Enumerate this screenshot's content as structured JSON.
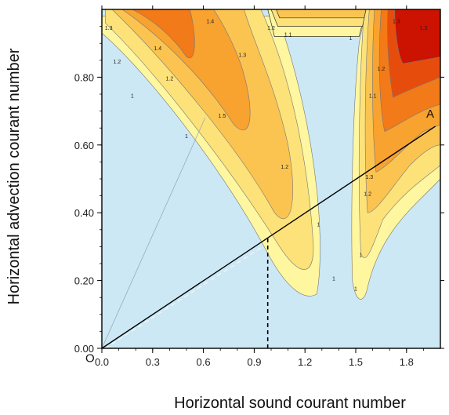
{
  "chart_data": {
    "type": "contour",
    "title": "",
    "xlabel": "Horizontal sound courant number",
    "ylabel": "Horizontal advection courant number",
    "xlim": [
      0.0,
      2.0
    ],
    "ylim": [
      0.0,
      1.0
    ],
    "x_ticks": [
      "0.0",
      "0.3",
      "0.6",
      "0.9",
      "1.2",
      "1.5",
      "1.8"
    ],
    "y_ticks": [
      "0.00",
      "0.20",
      "0.40",
      "0.60",
      "0.80"
    ],
    "x_tick_values": [
      0.0,
      0.3,
      0.6,
      0.9,
      1.2,
      1.5,
      1.8
    ],
    "y_tick_values": [
      0.0,
      0.2,
      0.4,
      0.6,
      0.8
    ],
    "stable_region_color": "#cce8f4",
    "fill_colors": [
      "#fff6a0",
      "#fde27a",
      "#fbc451",
      "#f8a230",
      "#f27a18",
      "#e64d0c",
      "#cc1200"
    ],
    "annotations": [
      {
        "text": "O",
        "x": -0.07,
        "y": -0.04
      },
      {
        "text": "A",
        "x": 1.94,
        "y": 0.68
      }
    ],
    "lines": [
      {
        "name": "OA",
        "x": [
          0.0,
          1.97
        ],
        "y": [
          0.0,
          0.655
        ]
      },
      {
        "name": "faint",
        "x": [
          0.0,
          0.61
        ],
        "y": [
          0.0,
          0.68
        ]
      },
      {
        "name": "dashed-vertical",
        "x": [
          0.98,
          0.98
        ],
        "y": [
          0.0,
          0.33
        ]
      }
    ],
    "contour_levels": [
      "1",
      "1.1",
      "1.2",
      "1.3",
      "1.4",
      "1.5"
    ],
    "contour_labels": [
      {
        "text": "1.3",
        "x": 0.04,
        "y": 0.94
      },
      {
        "text": "1.2",
        "x": 0.09,
        "y": 0.84
      },
      {
        "text": "1",
        "x": 0.18,
        "y": 0.74
      },
      {
        "text": "1.4",
        "x": 0.33,
        "y": 0.88
      },
      {
        "text": "1.2",
        "x": 0.4,
        "y": 0.79
      },
      {
        "text": "1",
        "x": 0.5,
        "y": 0.62
      },
      {
        "text": "1.5",
        "x": 0.71,
        "y": 0.68
      },
      {
        "text": "1.4",
        "x": 0.64,
        "y": 0.96
      },
      {
        "text": "1.3",
        "x": 0.83,
        "y": 0.86
      },
      {
        "text": "1.2",
        "x": 1.08,
        "y": 0.53
      },
      {
        "text": "1",
        "x": 1.28,
        "y": 0.36
      },
      {
        "text": "1",
        "x": 1.37,
        "y": 0.2
      },
      {
        "text": "1.3",
        "x": 1.74,
        "y": 0.96
      },
      {
        "text": "1.2",
        "x": 1.0,
        "y": 0.94
      },
      {
        "text": "1.1",
        "x": 1.1,
        "y": 0.92
      },
      {
        "text": "1",
        "x": 1.47,
        "y": 0.91
      },
      {
        "text": "1",
        "x": 1.53,
        "y": 0.27
      },
      {
        "text": "1",
        "x": 1.5,
        "y": 0.17
      },
      {
        "text": "1.3",
        "x": 1.9,
        "y": 0.94
      },
      {
        "text": "1.2",
        "x": 1.65,
        "y": 0.82
      },
      {
        "text": "1.1",
        "x": 1.6,
        "y": 0.74
      },
      {
        "text": "1.3",
        "x": 1.58,
        "y": 0.5
      },
      {
        "text": "1.2",
        "x": 1.57,
        "y": 0.45
      }
    ]
  }
}
